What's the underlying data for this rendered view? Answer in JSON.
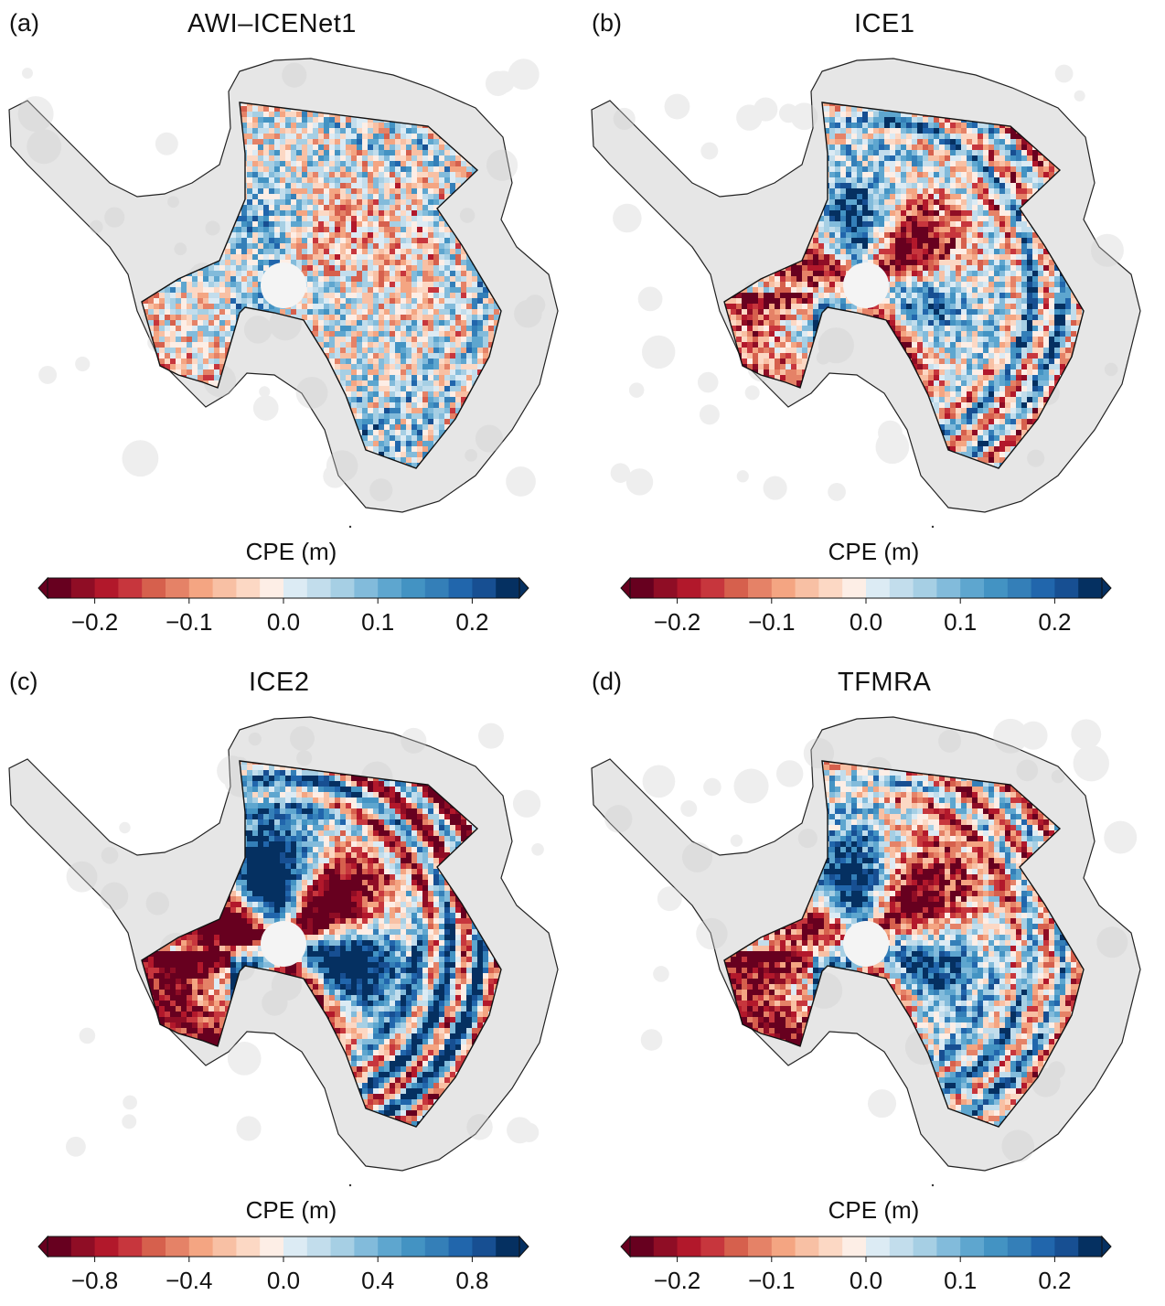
{
  "panels": [
    {
      "letter": "(a)",
      "title": "AWI–ICENet1",
      "colorbar": {
        "label": "CPE (m)",
        "ticks": [
          "−0.2",
          "−0.1",
          "0.0",
          "0.1",
          "0.2"
        ],
        "tick_values": [
          -0.2,
          -0.1,
          0.0,
          0.1,
          0.2
        ],
        "range": [
          -0.25,
          0.25
        ]
      },
      "pattern": "weak"
    },
    {
      "letter": "(b)",
      "title": "ICE1",
      "colorbar": {
        "label": "CPE (m)",
        "ticks": [
          "−0.2",
          "−0.1",
          "0.0",
          "0.1",
          "0.2"
        ],
        "tick_values": [
          -0.2,
          -0.1,
          0.0,
          0.1,
          0.2
        ],
        "range": [
          -0.25,
          0.25
        ]
      },
      "pattern": "strong"
    },
    {
      "letter": "(c)",
      "title": "ICE2",
      "colorbar": {
        "label": "CPE (m)",
        "ticks": [
          "−0.8",
          "−0.4",
          "0.0",
          "0.4",
          "0.8"
        ],
        "tick_values": [
          -0.8,
          -0.4,
          0.0,
          0.4,
          0.8
        ],
        "range": [
          -1.0,
          1.0
        ]
      },
      "pattern": "strongest"
    },
    {
      "letter": "(d)",
      "title": "TFMRA",
      "colorbar": {
        "label": "CPE (m)",
        "ticks": [
          "−0.2",
          "−0.1",
          "0.0",
          "0.1",
          "0.2"
        ],
        "tick_values": [
          -0.2,
          -0.1,
          0.0,
          0.1,
          0.2
        ],
        "range": [
          -0.25,
          0.25
        ]
      },
      "pattern": "strong"
    }
  ],
  "colormap": [
    "#67001f",
    "#8f0d25",
    "#b2182b",
    "#c7363d",
    "#d6604d",
    "#e58267",
    "#f4a582",
    "#f8c0a4",
    "#fcd8c4",
    "#fdeee6",
    "#dcebf4",
    "#c2ddec",
    "#a6cfe4",
    "#82bbdb",
    "#5ea6cf",
    "#4393c3",
    "#347fb8",
    "#2166ac",
    "#174f92",
    "#053061"
  ],
  "land_color": "#e6e6e6",
  "coast_color": "#222222"
}
